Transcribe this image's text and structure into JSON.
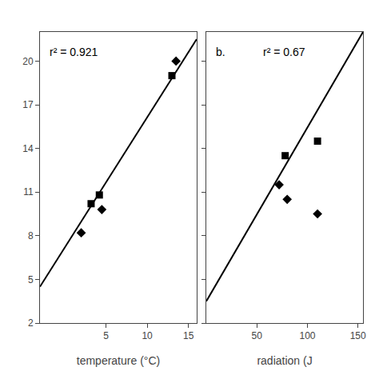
{
  "chart_data": [
    {
      "type": "scatter",
      "xlabel": "temperature (°C)",
      "annotations": [
        "r² = 0.921"
      ],
      "xlim": [
        -3,
        16
      ],
      "ylim": [
        2,
        22
      ],
      "xticks": [
        5,
        10,
        15
      ],
      "yticks": [
        2,
        5,
        8,
        11,
        14,
        17,
        20
      ],
      "grid": false,
      "series": [
        {
          "type": "scatter",
          "marker": "diamond",
          "color": "black",
          "x": [
            2.0,
            4.5,
            13.5
          ],
          "values": [
            8.2,
            9.8,
            20.0
          ]
        },
        {
          "type": "scatter",
          "marker": "square",
          "color": "black",
          "x": [
            3.2,
            4.2,
            13.0
          ],
          "values": [
            10.2,
            10.8,
            19.0
          ]
        },
        {
          "type": "line",
          "line_style": "solid",
          "color": "black",
          "x": [
            -3,
            16
          ],
          "values": [
            4.5,
            21.5
          ]
        }
      ]
    },
    {
      "type": "scatter",
      "xlabel": "radiation (J",
      "annotations": [
        "b.",
        "r² = 0.67"
      ],
      "xlim": [
        0,
        155
      ],
      "ylim": [
        2,
        22
      ],
      "xticks": [
        50,
        100,
        150
      ],
      "yticks": [
        2,
        5,
        8,
        11,
        14,
        17,
        20
      ],
      "grid": false,
      "tick_labels": "x",
      "series": [
        {
          "type": "scatter",
          "marker": "diamond",
          "color": "black",
          "x": [
            72,
            80,
            110
          ],
          "values": [
            11.5,
            10.5,
            9.5
          ]
        },
        {
          "type": "scatter",
          "marker": "square",
          "color": "black",
          "x": [
            78,
            110
          ],
          "values": [
            13.5,
            14.5
          ]
        },
        {
          "type": "line",
          "line_style": "solid",
          "color": "black",
          "x": [
            0,
            155
          ],
          "values": [
            3.5,
            22.0
          ]
        }
      ]
    }
  ]
}
